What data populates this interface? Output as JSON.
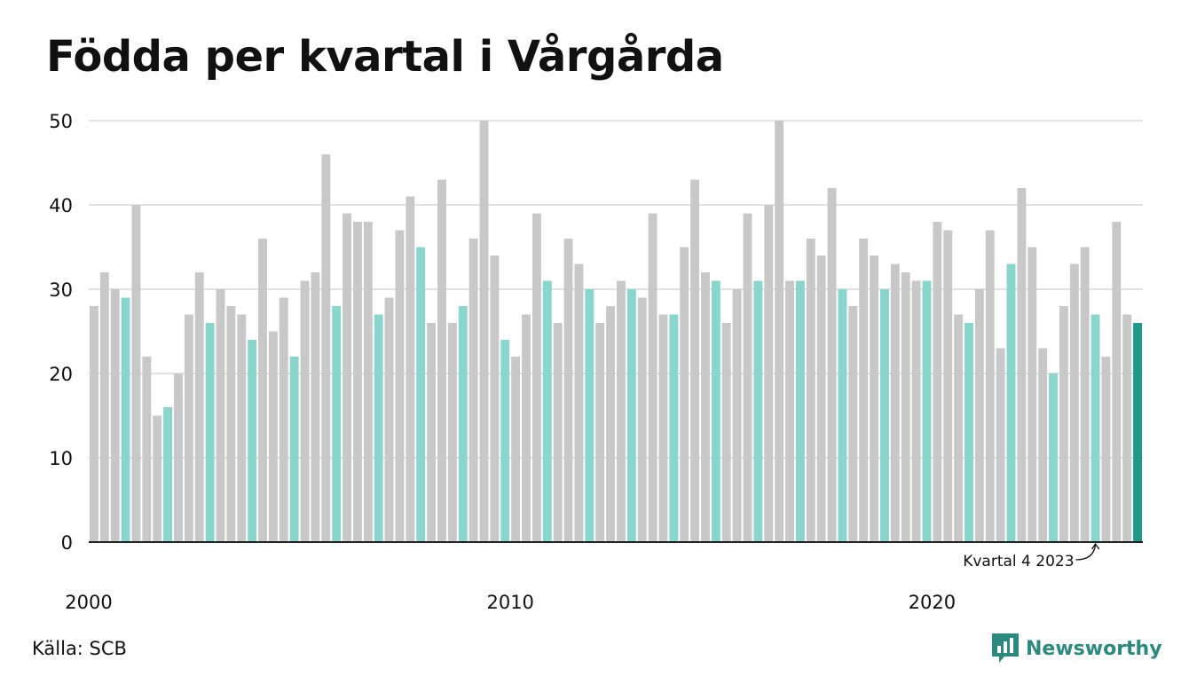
{
  "title": "Födda per kvartal i Vårgårda",
  "source": "Källa: SCB",
  "brand": {
    "name": "Newsworthy",
    "icon": "newsworthy-logo-icon"
  },
  "colors": {
    "default": "#c8c8c8",
    "quarter4": "#88d6cc",
    "latest": "#1a9a8a",
    "grid": "#e1e1e1",
    "axis": "#222222"
  },
  "chart_data": {
    "type": "bar",
    "title": "Födda per kvartal i Vårgårda",
    "xlabel": "",
    "ylabel": "",
    "ylim": [
      0,
      50
    ],
    "yticks": [
      "0",
      "10",
      "20",
      "30",
      "40",
      "50"
    ],
    "xticks": [
      {
        "label": "2000",
        "year": 2000
      },
      {
        "label": "2010",
        "year": 2010
      },
      {
        "label": "2020",
        "year": 2020
      }
    ],
    "grid": true,
    "annotation": {
      "label": "Kvartal 4 2023",
      "target": "2023 Q4"
    },
    "start": "2000 Q1",
    "values": [
      28,
      32,
      30,
      29,
      40,
      22,
      15,
      16,
      20,
      27,
      32,
      26,
      30,
      28,
      27,
      24,
      36,
      25,
      29,
      22,
      31,
      32,
      46,
      28,
      39,
      38,
      38,
      27,
      29,
      37,
      41,
      35,
      26,
      43,
      26,
      28,
      36,
      50,
      34,
      24,
      22,
      27,
      39,
      31,
      26,
      36,
      33,
      30,
      26,
      28,
      31,
      30,
      29,
      39,
      27,
      27,
      35,
      43,
      32,
      31,
      26,
      30,
      39,
      31,
      40,
      50,
      31,
      31,
      36,
      34,
      42,
      30,
      28,
      36,
      34,
      30,
      33,
      32,
      31,
      31,
      38,
      37,
      27,
      26,
      30,
      37,
      23,
      33,
      42,
      35,
      23,
      20,
      28,
      33,
      35,
      27,
      22,
      38,
      27,
      26
    ]
  }
}
